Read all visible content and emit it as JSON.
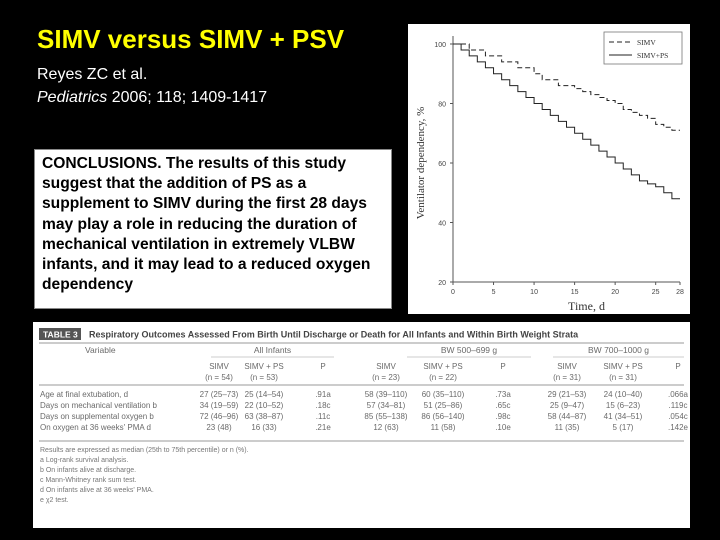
{
  "slide": {
    "title": "SIMV versus SIMV + PSV",
    "citation_authors": "Reyes ZC et al.",
    "citation_journal": "Pediatrics",
    "citation_details": " 2006; 118; 1409-1417",
    "conclusion": "CONCLUSIONS. The results of this study suggest that the addition of PS as a supplement to SIMV during the first 28 days may play a role in reducing the duration of mechanical ventilation in extremely VLBW infants, and it may lead to a reduced oxygen dependency"
  },
  "chart_data": {
    "type": "line",
    "title": "",
    "xlabel": "Time, d",
    "ylabel": "Ventilator dependency, %",
    "xlim": [
      0,
      28
    ],
    "ylim": [
      20,
      100
    ],
    "xticks": [
      0,
      5,
      10,
      15,
      20,
      25,
      28
    ],
    "yticks": [
      20,
      40,
      60,
      80,
      100
    ],
    "legend_position": "top-right",
    "series": [
      {
        "name": "SIMV",
        "style": "dashed",
        "x": [
          0,
          1,
          2,
          3,
          4,
          5,
          6,
          7,
          8,
          9,
          10,
          11,
          12,
          13,
          14,
          15,
          16,
          17,
          18,
          19,
          20,
          21,
          22,
          23,
          24,
          25,
          26,
          27,
          28
        ],
        "y": [
          100,
          100,
          98,
          98,
          96,
          96,
          94,
          94,
          92,
          92,
          90,
          88,
          88,
          86,
          86,
          85,
          84,
          83,
          82,
          81,
          80,
          78,
          77,
          76,
          75,
          73,
          72,
          71,
          71
        ]
      },
      {
        "name": "SIMV+PS",
        "style": "solid",
        "x": [
          0,
          1,
          2,
          3,
          4,
          5,
          6,
          7,
          8,
          9,
          10,
          11,
          12,
          13,
          14,
          15,
          16,
          17,
          18,
          19,
          20,
          21,
          22,
          23,
          24,
          25,
          26,
          27,
          28
        ],
        "y": [
          100,
          98,
          96,
          94,
          92,
          90,
          88,
          86,
          84,
          82,
          80,
          78,
          76,
          74,
          72,
          70,
          68,
          66,
          64,
          62,
          60,
          58,
          56,
          54,
          53,
          52,
          50,
          48,
          48
        ]
      }
    ]
  },
  "table": {
    "label": "TABLE 3",
    "caption": "Respiratory Outcomes Assessed From Birth Until Discharge or Death for All Infants and Within Birth Weight Strata",
    "group_all": "All Infants",
    "group_bw1": "BW 500–699 g",
    "group_bw2": "BW 700–1000 g",
    "variable_header": "Variable",
    "columns": [
      {
        "name": "SIMV",
        "n": "(n = 54)"
      },
      {
        "name": "SIMV + PS",
        "n": "(n = 53)"
      },
      {
        "name": "P",
        "n": ""
      },
      {
        "name": "SIMV",
        "n": "(n = 23)"
      },
      {
        "name": "SIMV + PS",
        "n": "(n = 22)"
      },
      {
        "name": "P",
        "n": ""
      },
      {
        "name": "SIMV",
        "n": "(n = 31)"
      },
      {
        "name": "SIMV + PS",
        "n": "(n = 31)"
      },
      {
        "name": "P",
        "n": ""
      }
    ],
    "rows": [
      {
        "label": "Age at final extubation, d",
        "cells": [
          "27 (25–73)",
          "25 (14–54)",
          ".91a",
          "58 (39–110)",
          "60 (35–110)",
          ".73a",
          "29 (21–53)",
          "24 (10–40)",
          ".066a"
        ]
      },
      {
        "label": "Days on mechanical ventilation b",
        "cells": [
          "34 (19–59)",
          "22 (10–52)",
          ".18c",
          "57 (34–81)",
          "51 (25–86)",
          ".65c",
          "25 (9–47)",
          "15 (6–23)",
          ".119c"
        ]
      },
      {
        "label": "Days on supplemental oxygen b",
        "cells": [
          "72 (46–96)",
          "63 (38–87)",
          ".11c",
          "85 (55–138)",
          "86 (56–140)",
          ".98c",
          "58 (44–87)",
          "41 (34–51)",
          ".054c"
        ]
      },
      {
        "label": "On oxygen at 36 weeks' PMA d",
        "cells": [
          "23 (48)",
          "16 (33)",
          ".21e",
          "12 (63)",
          "11 (58)",
          ".10e",
          "11 (35)",
          "5 (17)",
          ".142e"
        ]
      }
    ],
    "footnotes": [
      "Results are expressed as median (25th to 75th percentile) or n (%).",
      "a Log-rank survival analysis.",
      "b On infants alive at discharge.",
      "c Mann-Whitney rank sum test.",
      "d On infants alive at 36 weeks' PMA.",
      "e χ2 test."
    ]
  }
}
